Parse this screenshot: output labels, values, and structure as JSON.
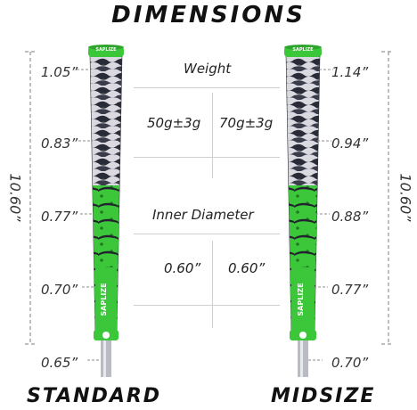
{
  "title": "DIMENSIONS",
  "standard": {
    "name": "STANDARD",
    "length": "10.60”",
    "diameters": [
      "1.05”",
      "0.83”",
      "0.77”",
      "0.70”",
      "0.65”"
    ]
  },
  "midsize": {
    "name": "MIDSIZE",
    "length": "10.60”",
    "diameters": [
      "1.14”",
      "0.94”",
      "0.88”",
      "0.77”",
      "0.70”"
    ]
  },
  "table": {
    "weight_label": "Weight",
    "weight_standard": "50g±3g",
    "weight_midsize": "70g±3g",
    "inner_label": "Inner Diameter",
    "inner_standard": "0.60”",
    "inner_midsize": "0.60”"
  },
  "brand": "SAPLIZE",
  "colors": {
    "grip_green": "#3cc63a",
    "grip_dark": "#2a2b38",
    "grip_light": "#d9d9df"
  }
}
